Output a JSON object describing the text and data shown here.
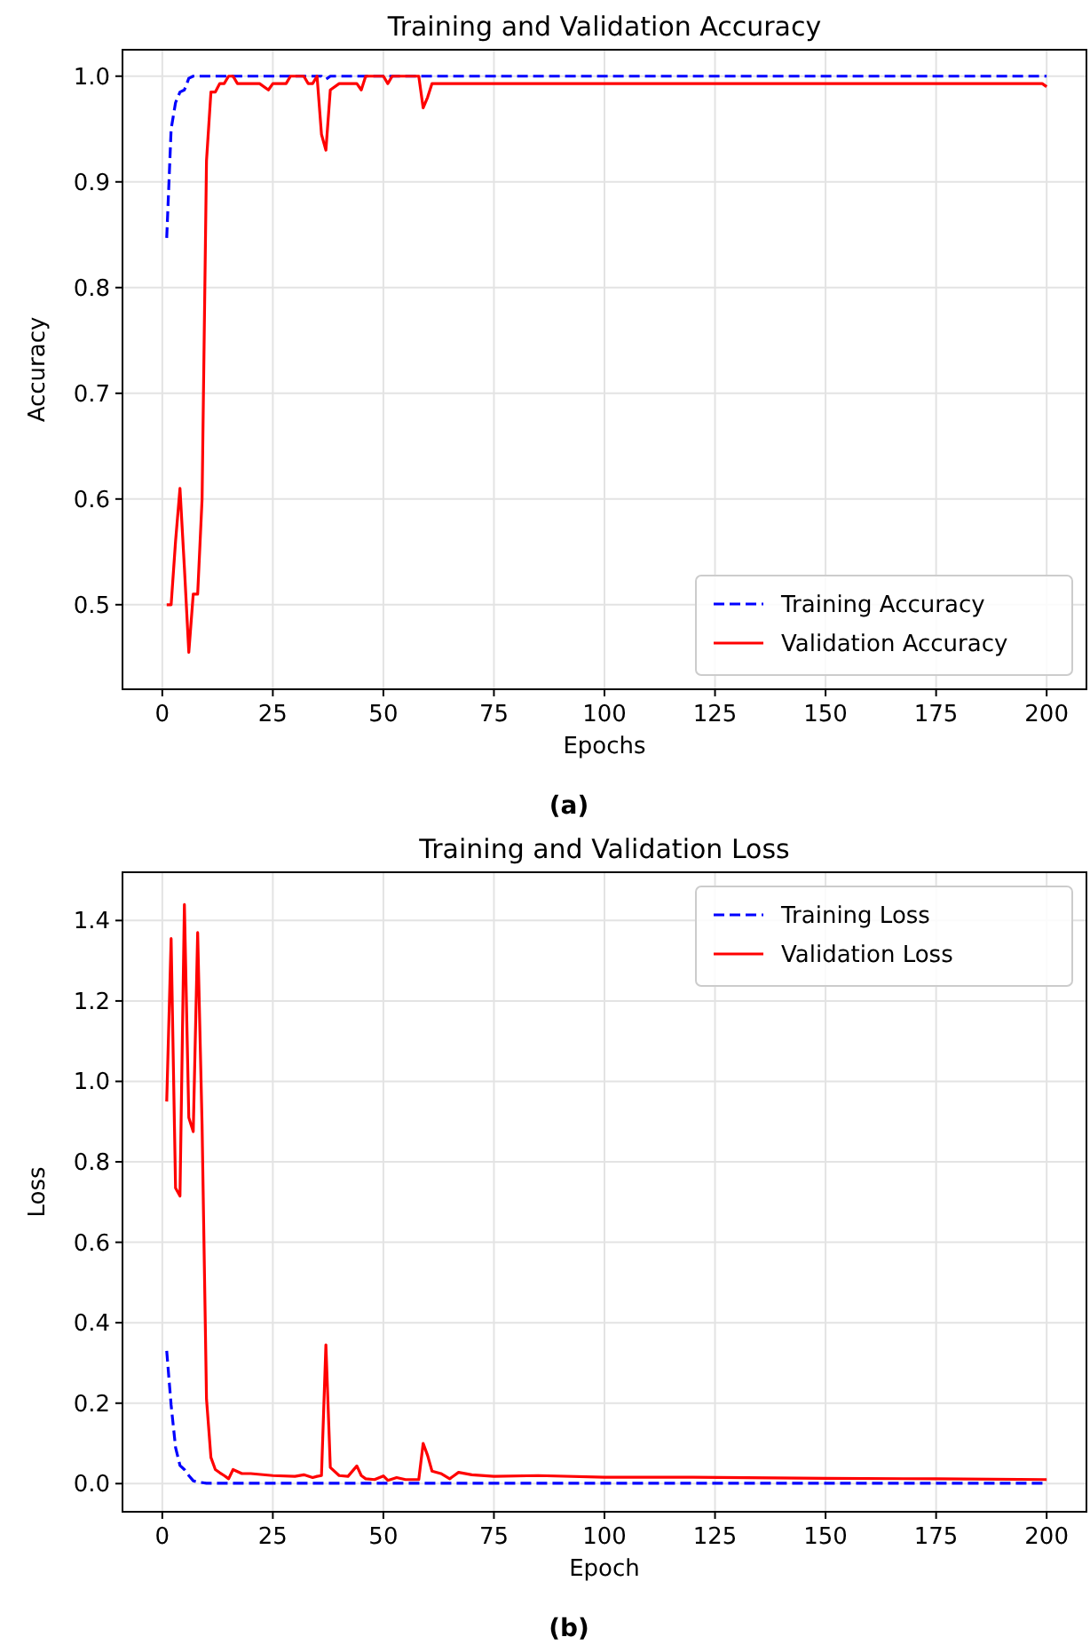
{
  "chart_data": [
    {
      "type": "line",
      "title": "Training and Validation Accuracy",
      "xlabel": "Epochs",
      "ylabel": "Accuracy",
      "annotations": [
        "(a)"
      ],
      "xlim": [
        -9,
        209
      ],
      "ylim": [
        0.42,
        1.025
      ],
      "xticks": [
        0,
        25,
        50,
        75,
        100,
        125,
        150,
        175,
        200
      ],
      "yticks": [
        {
          "value": 0.5,
          "label": "0.5"
        },
        {
          "value": 0.6,
          "label": "0.6"
        },
        {
          "value": 0.7,
          "label": "0.7"
        },
        {
          "value": 0.8,
          "label": "0.8"
        },
        {
          "value": 0.9,
          "label": "0.9"
        },
        {
          "value": 1.0,
          "label": "1.0"
        }
      ],
      "grid": true,
      "legend": "bottom right",
      "series": [
        {
          "name": "Training Accuracy",
          "color": "#0000ff",
          "line_style": "dashed",
          "x": [
            1,
            2,
            3,
            4,
            5,
            6,
            7,
            36,
            37,
            38,
            200
          ],
          "values": [
            0.847,
            0.95,
            0.975,
            0.985,
            0.987,
            0.998,
            1.0,
            1.0,
            0.997,
            1.0,
            1.0
          ]
        },
        {
          "name": "Validation Accuracy",
          "color": "#ff0000",
          "line_style": "solid",
          "x": [
            1,
            2,
            3,
            4,
            5,
            6,
            7,
            8,
            9,
            10,
            11,
            12,
            13,
            14,
            15,
            16,
            17,
            22,
            24,
            25,
            28,
            29,
            32,
            33,
            34,
            35,
            36,
            37,
            38,
            40,
            44,
            45,
            46,
            50,
            51,
            52,
            58,
            59,
            60,
            61,
            199,
            200
          ],
          "values": [
            0.5,
            0.5,
            0.56,
            0.61,
            0.535,
            0.455,
            0.51,
            0.51,
            0.6,
            0.92,
            0.985,
            0.985,
            0.993,
            0.993,
            1.0,
            1.0,
            0.993,
            0.993,
            0.987,
            0.993,
            0.993,
            1.0,
            1.0,
            0.993,
            0.993,
            1.0,
            0.945,
            0.93,
            0.987,
            0.993,
            0.993,
            0.987,
            1.0,
            1.0,
            0.993,
            1.0,
            1.0,
            0.97,
            0.98,
            0.993,
            0.993,
            0.99
          ]
        }
      ]
    },
    {
      "type": "line",
      "title": "Training and Validation Loss",
      "xlabel": "Epoch",
      "ylabel": "Loss",
      "annotations": [
        "(b)"
      ],
      "xlim": [
        -9,
        209
      ],
      "ylim": [
        -0.07,
        1.52
      ],
      "xticks": [
        0,
        25,
        50,
        75,
        100,
        125,
        150,
        175,
        200
      ],
      "yticks": [
        {
          "value": 0,
          "label": "0.0"
        },
        {
          "value": 0.2,
          "label": "0.2"
        },
        {
          "value": 0.4,
          "label": "0.4"
        },
        {
          "value": 0.6,
          "label": "0.6"
        },
        {
          "value": 0.8,
          "label": "0.8"
        },
        {
          "value": 1.0,
          "label": "1.0"
        },
        {
          "value": 1.2,
          "label": "1.2"
        },
        {
          "value": 1.4,
          "label": "1.4"
        }
      ],
      "grid": true,
      "legend": "top right",
      "series": [
        {
          "name": "Training Loss",
          "color": "#0000ff",
          "line_style": "dashed",
          "x": [
            1,
            2,
            3,
            4,
            5,
            6,
            7,
            8,
            10,
            200
          ],
          "values": [
            0.33,
            0.195,
            0.09,
            0.045,
            0.035,
            0.02,
            0.007,
            0.004,
            0.001,
            0.001
          ]
        },
        {
          "name": "Validation Loss",
          "color": "#ff0000",
          "line_style": "solid",
          "x": [
            1,
            2,
            3,
            4,
            5,
            6,
            7,
            8,
            9,
            10,
            11,
            12,
            13,
            14,
            15,
            16,
            17,
            18,
            20,
            25,
            30,
            32,
            34,
            35,
            36,
            37,
            38,
            40,
            42,
            44,
            45,
            46,
            48,
            50,
            51,
            53,
            55,
            58,
            59,
            60,
            61,
            63,
            65,
            67,
            70,
            75,
            85,
            100,
            120,
            150,
            175,
            200
          ],
          "values": [
            0.95,
            1.355,
            0.735,
            0.715,
            1.44,
            0.91,
            0.875,
            1.37,
            0.89,
            0.21,
            0.065,
            0.035,
            0.027,
            0.02,
            0.012,
            0.035,
            0.03,
            0.025,
            0.025,
            0.02,
            0.018,
            0.022,
            0.015,
            0.018,
            0.02,
            0.345,
            0.04,
            0.02,
            0.018,
            0.044,
            0.02,
            0.012,
            0.01,
            0.019,
            0.008,
            0.015,
            0.01,
            0.01,
            0.1,
            0.07,
            0.031,
            0.025,
            0.012,
            0.028,
            0.022,
            0.018,
            0.02,
            0.016,
            0.016,
            0.013,
            0.012,
            0.01
          ]
        }
      ]
    }
  ]
}
